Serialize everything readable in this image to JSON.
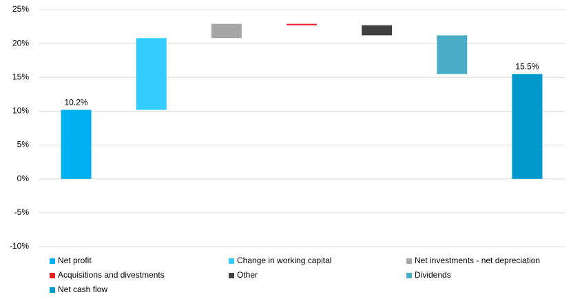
{
  "chart_data": {
    "type": "waterfall",
    "categories": [
      "Net profit",
      "Change in working capital",
      "Net investments - net depreciation",
      "Acquisitions and divestments",
      "Other",
      "Dividends",
      "Net cash flow"
    ],
    "values": [
      10.2,
      10.6,
      2.1,
      -0.2,
      -1.5,
      -5.7,
      15.5
    ],
    "is_total": [
      true,
      false,
      false,
      false,
      false,
      false,
      true
    ],
    "value_labels": [
      "10.2%",
      null,
      null,
      null,
      null,
      null,
      "15.5%"
    ],
    "colors": [
      "#00b0f0",
      "#33ccff",
      "#a6a6a6",
      "#e31e24",
      "#404040",
      "#4bacc6",
      "#0099cc"
    ],
    "ylim": [
      -10,
      25
    ],
    "yticks": [
      {
        "value": -10,
        "label": "-10%"
      },
      {
        "value": -5,
        "label": "-5%"
      },
      {
        "value": 0,
        "label": "0%"
      },
      {
        "value": 5,
        "label": "5%"
      },
      {
        "value": 10,
        "label": "10%"
      },
      {
        "value": 15,
        "label": "15%"
      },
      {
        "value": 20,
        "label": "20%"
      },
      {
        "value": 25,
        "label": "25%"
      }
    ],
    "grid": true
  }
}
